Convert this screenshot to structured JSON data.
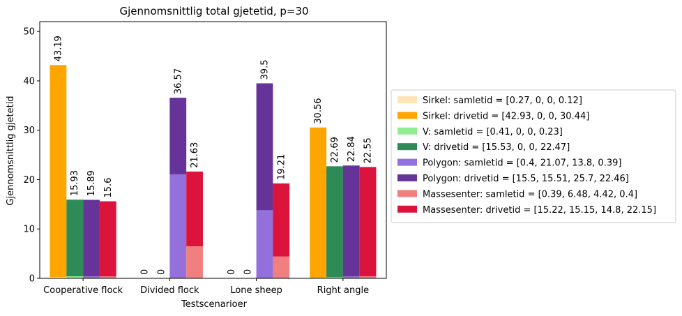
{
  "chart_data": {
    "type": "bar",
    "title": "Gjennomsnittlig total gjetetid, p=30",
    "xlabel": "Testscenarioer",
    "ylabel": "Gjennomsnittlig gjetetid",
    "ylim": [
      0,
      52
    ],
    "yticks": [
      0,
      10,
      20,
      30,
      40,
      50
    ],
    "categories": [
      "Cooperative flock",
      "Divided flock",
      "Lone sheep",
      "Right angle"
    ],
    "groups": [
      {
        "name": "Sirkel",
        "samletid": {
          "label": "Sirkel: samletid = [0.27, 0, 0, 0.12]",
          "color": "#ffe4b5",
          "values": [
            0.27,
            0,
            0,
            0.12
          ]
        },
        "drivetid": {
          "label": "Sirkel: drivetid = [42.93, 0, 0, 30.44]",
          "color": "#ffa500",
          "values": [
            42.93,
            0,
            0,
            30.44
          ]
        },
        "totals": [
          "43.19",
          "0",
          "0",
          "30.56"
        ]
      },
      {
        "name": "V",
        "samletid": {
          "label": "V: samletid = [0.41, 0, 0, 0.23]",
          "color": "#90ee90",
          "values": [
            0.41,
            0,
            0,
            0.23
          ]
        },
        "drivetid": {
          "label": "V: drivetid = [15.53, 0, 0, 22.47]",
          "color": "#2e8b57",
          "values": [
            15.53,
            0,
            0,
            22.47
          ]
        },
        "totals": [
          "15.93",
          "0",
          "0",
          "22.69"
        ]
      },
      {
        "name": "Polygon",
        "samletid": {
          "label": "Polygon: samletid = [0.4, 21.07, 13.8, 0.39]",
          "color": "#9370db",
          "values": [
            0.4,
            21.07,
            13.8,
            0.39
          ]
        },
        "drivetid": {
          "label": "Polygon: drivetid = [15.5, 15.51, 25.7, 22.46]",
          "color": "#663399",
          "values": [
            15.5,
            15.51,
            25.7,
            22.46
          ]
        },
        "totals": [
          "15.89",
          "36.57",
          "39.5",
          "22.84"
        ]
      },
      {
        "name": "Massesenter",
        "samletid": {
          "label": "Massesenter: samletid = [0.39, 6.48, 4.42, 0.4]",
          "color": "#f08080",
          "values": [
            0.39,
            6.48,
            4.42,
            0.4
          ]
        },
        "drivetid": {
          "label": "Massesenter: drivetid = [15.22, 15.15, 14.8, 22.15]",
          "color": "#dc143c",
          "values": [
            15.22,
            15.15,
            14.8,
            22.15
          ]
        },
        "totals": [
          "15.6",
          "21.63",
          "19.21",
          "22.55"
        ]
      }
    ],
    "legend_position": "right"
  }
}
